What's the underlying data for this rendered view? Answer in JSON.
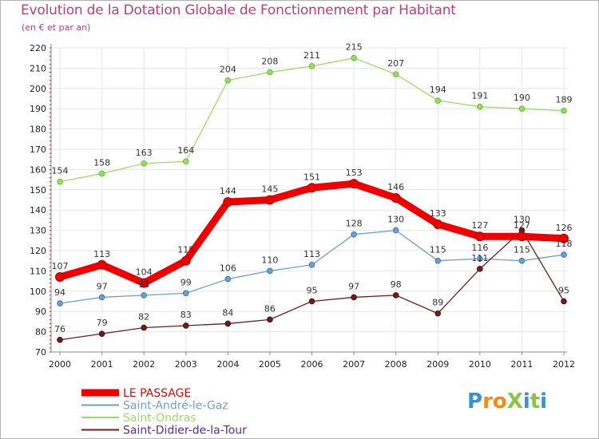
{
  "title": "Evolution de la Dotation Globale de Fonctionnement par Habitant",
  "subtitle": "(en € et par an)",
  "logo_text": "ProXiti",
  "chart_data": {
    "type": "line",
    "title": "Evolution de la Dotation Globale de Fonctionnement par Habitant",
    "subtitle": "(en € et par an)",
    "xlabel": "",
    "ylabel": "",
    "ylim": [
      70,
      220
    ],
    "yticks": [
      70,
      80,
      90,
      100,
      110,
      120,
      130,
      140,
      150,
      160,
      170,
      180,
      190,
      200,
      210,
      220
    ],
    "categories": [
      "2000",
      "2001",
      "2002",
      "2003",
      "2004",
      "2005",
      "2006",
      "2007",
      "2008",
      "2009",
      "2010",
      "2011",
      "2012"
    ],
    "grid": true,
    "legend_position": "bottom-left",
    "series": [
      {
        "name": "LE PASSAGE",
        "color": "#ee0000",
        "values": [
          107,
          113,
          104,
          115,
          144,
          145,
          151,
          153,
          146,
          133,
          127,
          127,
          126
        ]
      },
      {
        "name": "Saint-André-le-Gaz",
        "color": "#6e9fcf",
        "values": [
          94,
          97,
          98,
          99,
          106,
          110,
          113,
          128,
          130,
          115,
          116,
          115,
          118
        ]
      },
      {
        "name": "Saint-Ondras",
        "color": "#99dd66",
        "values": [
          154,
          158,
          163,
          164,
          204,
          208,
          211,
          215,
          207,
          194,
          191,
          190,
          189
        ]
      },
      {
        "name": "Saint-Didier-de-la-Tour",
        "color": "#6e1d1d",
        "values": [
          76,
          79,
          82,
          83,
          84,
          86,
          95,
          97,
          98,
          89,
          111,
          130,
          95
        ]
      }
    ]
  }
}
